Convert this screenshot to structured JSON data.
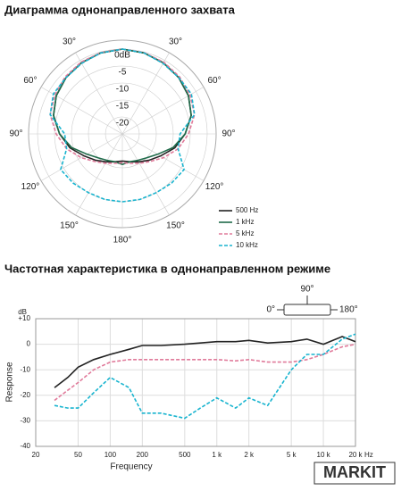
{
  "watermark": "MARKIT",
  "chart_data": [
    {
      "type": "polar",
      "title": "Диаграмма однонаправленного захвата",
      "theta": [
        0,
        15,
        30,
        45,
        60,
        75,
        90,
        105,
        120,
        135,
        150,
        165,
        180,
        195,
        210,
        225,
        240,
        255,
        270,
        285,
        300,
        315,
        330,
        345
      ],
      "rlim": [
        -25,
        0
      ],
      "rticks": [
        {
          "value": 0,
          "label": "0dB"
        },
        -5,
        -10,
        -15,
        -20
      ],
      "thetaticks": [
        {
          "value": 30,
          "label": "30°"
        },
        {
          "value": 60,
          "label": "60°"
        },
        {
          "value": 90,
          "label": "90°"
        },
        {
          "value": 120,
          "label": "120°"
        },
        {
          "value": 150,
          "label": "150°"
        },
        {
          "value": 180,
          "label": "180°"
        },
        {
          "value": 210,
          "label": "150°"
        },
        {
          "value": 240,
          "label": "120°"
        },
        {
          "value": 270,
          "label": "90°"
        },
        {
          "value": 300,
          "label": "60°"
        },
        {
          "value": 330,
          "label": "30°"
        }
      ],
      "legend_position": "lower right",
      "series": [
        {
          "name": "500 Hz",
          "color": "#222222",
          "line_style": "solid",
          "values": [
            0,
            -0.3,
            -0.8,
            -1.5,
            -2.5,
            -4,
            -6.5,
            -9,
            -12,
            -14,
            -15.5,
            -16.5,
            -17,
            -16.5,
            -15.5,
            -14,
            -12,
            -9,
            -6.5,
            -4,
            -2.5,
            -1.5,
            -0.8,
            -0.3
          ]
        },
        {
          "name": "1 kHz",
          "color": "#1f6b4a",
          "line_style": "solid",
          "values": [
            0,
            -0.3,
            -0.8,
            -1.5,
            -2.5,
            -4,
            -6.5,
            -9.5,
            -13,
            -15,
            -16,
            -16.5,
            -16,
            -16.5,
            -16,
            -15,
            -13,
            -9.5,
            -6.5,
            -4,
            -2.5,
            -1.5,
            -0.8,
            -0.3
          ]
        },
        {
          "name": "5 kHz",
          "color": "#e07a9a",
          "line_style": "dashed",
          "values": [
            0,
            -0.2,
            -0.6,
            -1.2,
            -2,
            -3,
            -5.5,
            -8,
            -11,
            -13.5,
            -15,
            -16,
            -16.5,
            -16,
            -15,
            -13.5,
            -11,
            -8,
            -5.5,
            -3,
            -2,
            -1.2,
            -0.6,
            -0.2
          ]
        },
        {
          "name": "10 kHz",
          "color": "#18b4cf",
          "line_style": "dashed",
          "values": [
            0,
            -0.3,
            -1,
            -1.5,
            -1.5,
            -3,
            -8,
            -8,
            -4,
            -4.5,
            -5,
            -5,
            -5,
            -5,
            -5,
            -4.5,
            -4,
            -8,
            -8,
            -3,
            -1.5,
            -1.5,
            -1,
            -0.3
          ]
        }
      ]
    },
    {
      "type": "line",
      "title": "Частотная характеристика в однонаправленном режиме",
      "x": [
        30,
        40,
        50,
        70,
        100,
        150,
        200,
        300,
        500,
        700,
        1000,
        1500,
        2000,
        3000,
        5000,
        7000,
        10000,
        15000,
        20000
      ],
      "xscale": "log",
      "xlim": [
        20,
        20000
      ],
      "xticks": [
        20,
        50,
        100,
        200,
        500,
        {
          "value": 1000,
          "label": "1 k"
        },
        {
          "value": 2000,
          "label": "2 k"
        },
        {
          "value": 5000,
          "label": "5 k"
        },
        {
          "value": 10000,
          "label": "10 k"
        },
        {
          "value": 20000,
          "label": "20 k"
        }
      ],
      "x_unit": "Hz",
      "xlabel": "Frequency",
      "y_unit": "dB",
      "ylabel": "Response",
      "ylim": [
        -40,
        10
      ],
      "yticks": [
        {
          "value": 10,
          "label": "+10"
        },
        0,
        -10,
        -20,
        -30,
        -40
      ],
      "grid": true,
      "series": [
        {
          "name": "0°",
          "color": "#222222",
          "line_style": "solid",
          "values": [
            -17,
            -13,
            -9,
            -6,
            -4,
            -2,
            -0.5,
            -0.5,
            0,
            0.5,
            1,
            1,
            1.5,
            0.5,
            1,
            2,
            0,
            3,
            1
          ]
        },
        {
          "name": "90°",
          "color": "#e07a9a",
          "line_style": "dashed",
          "values": [
            -22,
            -18,
            -15,
            -10,
            -7,
            -6,
            -6,
            -6,
            -6,
            -6,
            -6,
            -6.5,
            -6,
            -7,
            -7,
            -6,
            -4,
            -1,
            0
          ]
        },
        {
          "name": "180°",
          "color": "#18b4cf",
          "line_style": "dashed",
          "values": [
            -24,
            -25,
            -25,
            -19,
            -13,
            -17,
            -27,
            -27,
            -29,
            -25,
            -21,
            -25,
            -21,
            -24,
            -10,
            -4,
            -4,
            2,
            4
          ]
        }
      ]
    }
  ]
}
